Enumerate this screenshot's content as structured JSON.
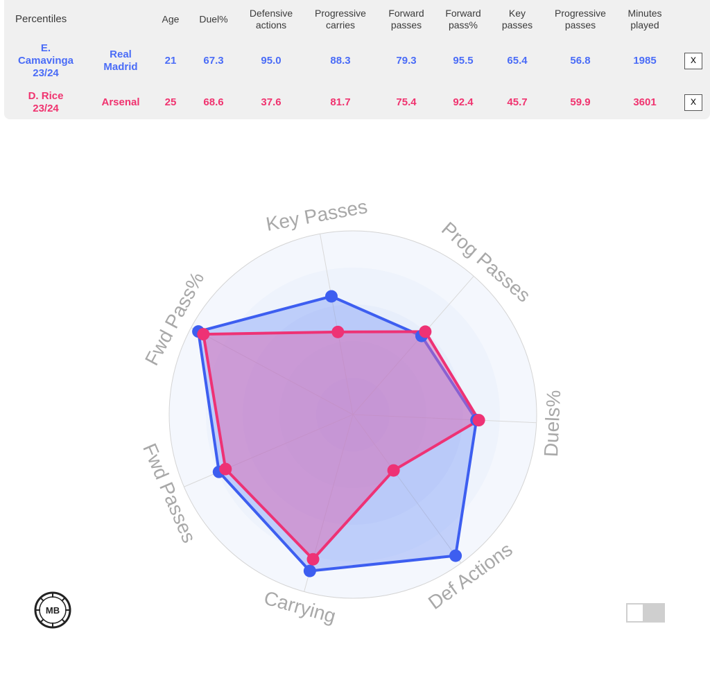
{
  "table": {
    "corner_label": "Percentiles",
    "columns": [
      {
        "key": "age",
        "label": "Age"
      },
      {
        "key": "duel",
        "label": "Duel%"
      },
      {
        "key": "def",
        "label": "Defensive\nactions"
      },
      {
        "key": "carry",
        "label": "Progressive\ncarries"
      },
      {
        "key": "fwd",
        "label": "Forward\npasses"
      },
      {
        "key": "fwdpct",
        "label": "Forward\npass%"
      },
      {
        "key": "key",
        "label": "Key\npasses"
      },
      {
        "key": "prog",
        "label": "Progressive\npasses"
      },
      {
        "key": "min",
        "label": "Minutes\nplayed"
      }
    ],
    "rows": [
      {
        "player": "E.\nCamavinga\n23/24",
        "team": "Real\nMadrid",
        "values": [
          "21",
          "67.3",
          "95.0",
          "88.3",
          "79.3",
          "95.5",
          "65.4",
          "56.8",
          "1985"
        ],
        "color": "#4a6cf7",
        "remove_label": "x"
      },
      {
        "player": "D. Rice\n23/24",
        "team": "Arsenal",
        "values": [
          "25",
          "68.6",
          "37.6",
          "81.7",
          "75.4",
          "92.4",
          "45.7",
          "59.9",
          "3601"
        ],
        "color": "#f0336f",
        "remove_label": "x"
      }
    ]
  },
  "chart_data": {
    "type": "radar",
    "axes": [
      "Key Passes",
      "Prog Passes",
      "Duels%",
      "Def Actions",
      "Carrying",
      "Fwd Passes",
      "Fwd Pass%"
    ],
    "range": [
      0,
      100
    ],
    "rings": 5,
    "series": [
      {
        "name": "E. Camavinga 23/24",
        "color": "#3d5ef0",
        "fill": "rgba(95,130,245,0.33)",
        "values": [
          65.4,
          56.8,
          67.3,
          95.0,
          88.3,
          79.3,
          95.5
        ]
      },
      {
        "name": "D. Rice 23/24",
        "color": "#ee3275",
        "fill": "rgba(220,100,175,0.48)",
        "values": [
          45.7,
          59.9,
          68.6,
          37.6,
          81.7,
          75.4,
          92.4
        ]
      }
    ]
  },
  "logo": {
    "text": "MB",
    "icon": "football-icon"
  },
  "toggle": {
    "state": "off"
  }
}
